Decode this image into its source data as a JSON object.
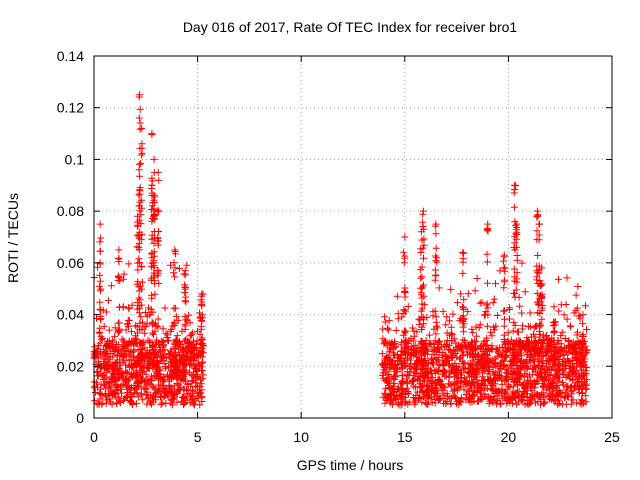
{
  "chart_data": {
    "type": "scatter",
    "title": "Day 016 of 2017, Rate Of TEC Index for receiver bro1",
    "xlabel": "GPS time / hours",
    "ylabel": "ROTI / TECUs",
    "xlim": [
      0,
      25
    ],
    "ylim": [
      0,
      0.14
    ],
    "xticks": [
      0,
      5,
      10,
      15,
      20,
      25
    ],
    "xtick_labels": [
      "0",
      "5",
      "10",
      "15",
      "20",
      "25"
    ],
    "yticks": [
      0,
      0.02,
      0.04,
      0.06,
      0.08,
      0.1,
      0.12,
      0.14
    ],
    "ytick_labels": [
      "0",
      "0.02",
      "0.04",
      "0.06",
      "0.08",
      "0.1",
      "0.12",
      "0.14"
    ],
    "grid": true,
    "marker": "plus",
    "marker_color": "#ff0000",
    "series": [
      {
        "name": "ROTI",
        "coverage_hours": [
          [
            0.0,
            5.3
          ],
          [
            13.9,
            23.8
          ]
        ],
        "typical_range": [
          0.005,
          0.03
        ],
        "peaks": [
          {
            "x": 2.2,
            "y": 0.125
          },
          {
            "x": 2.3,
            "y": 0.112
          },
          {
            "x": 2.8,
            "y": 0.11
          },
          {
            "x": 2.9,
            "y": 0.1
          },
          {
            "x": 2.2,
            "y": 0.098
          },
          {
            "x": 3.1,
            "y": 0.095
          },
          {
            "x": 2.8,
            "y": 0.09
          },
          {
            "x": 2.1,
            "y": 0.078
          },
          {
            "x": 0.3,
            "y": 0.075
          },
          {
            "x": 2.9,
            "y": 0.08
          },
          {
            "x": 1.2,
            "y": 0.065
          },
          {
            "x": 3.9,
            "y": 0.065
          },
          {
            "x": 4.4,
            "y": 0.057
          },
          {
            "x": 5.2,
            "y": 0.048
          },
          {
            "x": 15.0,
            "y": 0.07
          },
          {
            "x": 15.9,
            "y": 0.08
          },
          {
            "x": 15.8,
            "y": 0.072
          },
          {
            "x": 16.5,
            "y": 0.075
          },
          {
            "x": 17.8,
            "y": 0.064
          },
          {
            "x": 19.0,
            "y": 0.075
          },
          {
            "x": 20.3,
            "y": 0.09
          },
          {
            "x": 19.8,
            "y": 0.063
          },
          {
            "x": 20.4,
            "y": 0.075
          },
          {
            "x": 21.4,
            "y": 0.08
          },
          {
            "x": 21.5,
            "y": 0.075
          },
          {
            "x": 21.6,
            "y": 0.058
          },
          {
            "x": 22.2,
            "y": 0.043
          },
          {
            "x": 23.6,
            "y": 0.04
          }
        ]
      }
    ]
  }
}
